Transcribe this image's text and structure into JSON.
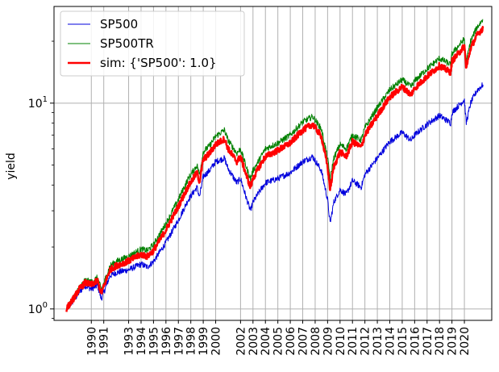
{
  "chart_data": {
    "type": "line",
    "ylabel": "yield",
    "xlabel": "",
    "yscale": "log",
    "ylim": [
      0.88,
      29.5
    ],
    "xlim": [
      1987.0,
      2022.2
    ],
    "grid": true,
    "legend_position": "top-left",
    "x_tick_labels": [
      "1990",
      "1991",
      "1993",
      "1994",
      "1995",
      "1996",
      "1997",
      "1998",
      "1999",
      "2000",
      "2002",
      "2003",
      "2004",
      "2005",
      "2006",
      "2007",
      "2008",
      "2009",
      "2010",
      "2011",
      "2012",
      "2013",
      "2014",
      "2015",
      "2016",
      "2017",
      "2018",
      "2019",
      "2020"
    ],
    "x_tick_positions": [
      1990.0,
      1991.0,
      1993.0,
      1994.0,
      1995.0,
      1996.0,
      1997.0,
      1998.0,
      1999.0,
      2000.0,
      2002.0,
      2003.0,
      2004.0,
      2005.0,
      2006.0,
      2007.0,
      2008.0,
      2009.0,
      2010.0,
      2011.0,
      2012.0,
      2013.0,
      2014.0,
      2015.0,
      2016.0,
      2017.0,
      2018.0,
      2019.0,
      2020.0
    ],
    "y_tick_labels": [
      "10^0",
      "10^1"
    ],
    "y_tick_values": [
      1,
      10
    ],
    "series": [
      {
        "name": "SP500",
        "color": "#0000dd",
        "x": [
          1988.0,
          1988.6,
          1989.0,
          1989.5,
          1990.0,
          1990.5,
          1990.8,
          1991.0,
          1991.5,
          1992.0,
          1993.0,
          1994.0,
          1994.5,
          1995.0,
          1996.0,
          1997.0,
          1997.8,
          1998.5,
          1998.7,
          1999.0,
          1999.5,
          2000.0,
          2000.7,
          2001.0,
          2001.7,
          2002.0,
          2002.5,
          2002.8,
          2003.0,
          2003.5,
          2004.0,
          2005.0,
          2006.0,
          2007.0,
          2007.8,
          2008.5,
          2009.0,
          2009.2,
          2009.5,
          2010.0,
          2010.5,
          2011.0,
          2011.7,
          2012.0,
          2013.0,
          2014.0,
          2015.0,
          2015.7,
          2016.0,
          2017.0,
          2018.0,
          2018.9,
          2019.0,
          2020.0,
          2020.15,
          2020.5,
          2021.0,
          2021.5
        ],
        "y": [
          1.0,
          1.1,
          1.2,
          1.3,
          1.25,
          1.3,
          1.12,
          1.2,
          1.45,
          1.5,
          1.55,
          1.65,
          1.6,
          1.7,
          2.1,
          2.7,
          3.4,
          3.9,
          3.5,
          4.4,
          4.7,
          5.2,
          5.4,
          4.8,
          4.1,
          4.3,
          3.4,
          3.0,
          3.3,
          3.7,
          4.1,
          4.3,
          4.6,
          5.2,
          5.5,
          4.7,
          3.4,
          2.6,
          3.3,
          3.8,
          3.6,
          4.2,
          3.9,
          4.5,
          5.4,
          6.5,
          7.2,
          6.6,
          7.0,
          7.9,
          8.7,
          8.0,
          9.0,
          10.4,
          8.0,
          10.0,
          11.5,
          12.3
        ]
      },
      {
        "name": "SP500TR",
        "color": "#008000",
        "x": [
          1988.0,
          1988.6,
          1989.0,
          1989.5,
          1990.0,
          1990.5,
          1990.8,
          1991.0,
          1991.5,
          1992.0,
          1993.0,
          1994.0,
          1994.5,
          1995.0,
          1996.0,
          1997.0,
          1997.8,
          1998.5,
          1998.7,
          1999.0,
          1999.5,
          2000.0,
          2000.7,
          2001.0,
          2001.7,
          2002.0,
          2002.5,
          2002.8,
          2003.0,
          2003.5,
          2004.0,
          2005.0,
          2006.0,
          2007.0,
          2007.8,
          2008.5,
          2009.0,
          2009.2,
          2009.5,
          2010.0,
          2010.5,
          2011.0,
          2011.7,
          2012.0,
          2013.0,
          2014.0,
          2015.0,
          2015.7,
          2016.0,
          2017.0,
          2018.0,
          2018.9,
          2019.0,
          2020.0,
          2020.15,
          2020.5,
          2021.0,
          2021.5
        ],
        "y": [
          1.0,
          1.14,
          1.26,
          1.38,
          1.35,
          1.42,
          1.24,
          1.33,
          1.62,
          1.7,
          1.8,
          1.95,
          1.92,
          2.05,
          2.6,
          3.4,
          4.3,
          5.0,
          4.5,
          5.8,
          6.2,
          6.9,
          7.4,
          6.6,
          5.7,
          6.0,
          4.8,
          4.3,
          4.7,
          5.3,
          6.0,
          6.4,
          7.0,
          8.1,
          8.6,
          7.5,
          5.4,
          4.3,
          5.4,
          6.3,
          6.0,
          7.0,
          6.6,
          7.6,
          9.5,
          11.6,
          13.0,
          12.0,
          12.8,
          14.7,
          16.5,
          15.4,
          17.4,
          20.5,
          15.9,
          20.0,
          23.3,
          25.5
        ]
      },
      {
        "name": "sim: {'SP500': 1.0}",
        "color": "#ff0000",
        "x": [
          1988.0,
          1988.6,
          1989.0,
          1989.5,
          1990.0,
          1990.5,
          1990.8,
          1991.0,
          1991.5,
          1992.0,
          1993.0,
          1994.0,
          1994.5,
          1995.0,
          1996.0,
          1997.0,
          1997.8,
          1998.5,
          1998.7,
          1999.0,
          1999.5,
          2000.0,
          2000.7,
          2001.0,
          2001.7,
          2002.0,
          2002.5,
          2002.8,
          2003.0,
          2003.5,
          2004.0,
          2005.0,
          2006.0,
          2007.0,
          2007.8,
          2008.5,
          2009.0,
          2009.2,
          2009.5,
          2010.0,
          2010.5,
          2011.0,
          2011.7,
          2012.0,
          2013.0,
          2014.0,
          2015.0,
          2015.7,
          2016.0,
          2017.0,
          2018.0,
          2018.9,
          2019.0,
          2020.0,
          2020.15,
          2020.5,
          2021.0,
          2021.5
        ],
        "y": [
          1.0,
          1.13,
          1.24,
          1.34,
          1.31,
          1.37,
          1.19,
          1.28,
          1.55,
          1.62,
          1.71,
          1.84,
          1.8,
          1.92,
          2.42,
          3.15,
          3.95,
          4.6,
          4.15,
          5.3,
          5.7,
          6.3,
          6.7,
          6.0,
          5.2,
          5.5,
          4.4,
          3.9,
          4.3,
          4.9,
          5.5,
          5.9,
          6.4,
          7.4,
          7.9,
          6.9,
          4.9,
          3.8,
          4.9,
          5.8,
          5.5,
          6.5,
          6.1,
          7.0,
          8.7,
          10.7,
          12.0,
          11.0,
          11.8,
          13.5,
          15.2,
          14.1,
          16.0,
          18.9,
          14.7,
          18.5,
          21.3,
          23.2
        ]
      }
    ]
  }
}
